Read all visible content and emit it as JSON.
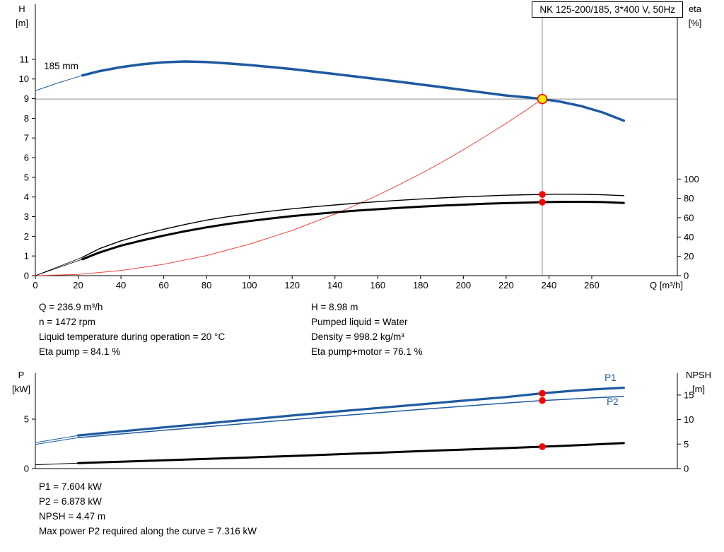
{
  "colors": {
    "blue": "#1e5aa0",
    "black": "#000000",
    "red": "#f0443c",
    "red_dot": "#ff0000",
    "yellow": "#ffe800",
    "gray": "#909090"
  },
  "chart_data": [
    {
      "id": "hq-eta",
      "type": "line",
      "title": "NK 125-200/185, 3*400 V, 50Hz",
      "x_axis": {
        "label": "Q [m³/h]",
        "min": 0,
        "max": 300,
        "ticks": [
          0,
          20,
          40,
          60,
          80,
          100,
          120,
          140,
          160,
          180,
          200,
          220,
          240,
          260
        ]
      },
      "y_left": {
        "label": [
          "H",
          "[m]"
        ],
        "min": 0,
        "max": 13.8,
        "ticks": [
          0,
          1,
          2,
          3,
          4,
          5,
          6,
          7,
          8,
          9,
          10,
          11
        ]
      },
      "y_right": {
        "label": [
          "eta",
          "[%]"
        ],
        "min": 0,
        "max": 281,
        "ticks": [
          0,
          20,
          40,
          60,
          80,
          100
        ]
      },
      "crosshair": {
        "x": 236.9,
        "y_left": 8.98
      },
      "series": [
        {
          "name": "head-curve-lead",
          "axis": "left",
          "color": "blue",
          "width": 1,
          "points": [
            [
              0,
              9.4
            ],
            [
              10,
              9.78
            ],
            [
              22,
              10.18
            ]
          ]
        },
        {
          "name": "head-curve-185mm",
          "axis": "left",
          "color": "blue",
          "width": 3.5,
          "points": [
            [
              22,
              10.18
            ],
            [
              30,
              10.4
            ],
            [
              40,
              10.6
            ],
            [
              50,
              10.75
            ],
            [
              60,
              10.85
            ],
            [
              70,
              10.89
            ],
            [
              80,
              10.86
            ],
            [
              90,
              10.79
            ],
            [
              100,
              10.71
            ],
            [
              110,
              10.61
            ],
            [
              120,
              10.5
            ],
            [
              130,
              10.38
            ],
            [
              140,
              10.25
            ],
            [
              150,
              10.12
            ],
            [
              160,
              9.99
            ],
            [
              170,
              9.86
            ],
            [
              180,
              9.72
            ],
            [
              190,
              9.58
            ],
            [
              200,
              9.44
            ],
            [
              210,
              9.3
            ],
            [
              220,
              9.16
            ],
            [
              230,
              9.06
            ],
            [
              236.9,
              8.98
            ],
            [
              245,
              8.85
            ],
            [
              255,
              8.62
            ],
            [
              265,
              8.3
            ],
            [
              275,
              7.88
            ]
          ]
        },
        {
          "name": "system-curve",
          "axis": "left",
          "color": "red",
          "width": 1,
          "points": [
            [
              0,
              0
            ],
            [
              20,
              0.06
            ],
            [
              40,
              0.26
            ],
            [
              60,
              0.58
            ],
            [
              80,
              1.02
            ],
            [
              100,
              1.6
            ],
            [
              120,
              2.3
            ],
            [
              140,
              3.13
            ],
            [
              150,
              3.6
            ],
            [
              160,
              4.09
            ],
            [
              170,
              4.62
            ],
            [
              180,
              5.18
            ],
            [
              190,
              5.77
            ],
            [
              200,
              6.4
            ],
            [
              210,
              7.06
            ],
            [
              220,
              7.74
            ],
            [
              230,
              8.46
            ],
            [
              236.9,
              8.98
            ]
          ]
        },
        {
          "name": "eta-pump-lead",
          "axis": "right",
          "color": "black",
          "width": 0.8,
          "points": [
            [
              0,
              0
            ],
            [
              22,
              19
            ]
          ]
        },
        {
          "name": "eta-pump-curve",
          "axis": "right",
          "color": "black",
          "width": 1.4,
          "points": [
            [
              22,
              19
            ],
            [
              30,
              28
            ],
            [
              40,
              36
            ],
            [
              50,
              42.5
            ],
            [
              60,
              48
            ],
            [
              70,
              53
            ],
            [
              80,
              57.5
            ],
            [
              90,
              61
            ],
            [
              100,
              64
            ],
            [
              110,
              66.8
            ],
            [
              120,
              69.2
            ],
            [
              130,
              71.3
            ],
            [
              140,
              73.2
            ],
            [
              150,
              75
            ],
            [
              160,
              76.6
            ],
            [
              170,
              78
            ],
            [
              180,
              79.3
            ],
            [
              190,
              80.5
            ],
            [
              200,
              81.6
            ],
            [
              210,
              82.5
            ],
            [
              220,
              83.3
            ],
            [
              230,
              83.8
            ],
            [
              236.9,
              84.1
            ],
            [
              245,
              84.3
            ],
            [
              255,
              84.2
            ],
            [
              265,
              83.7
            ],
            [
              275,
              82.8
            ]
          ]
        },
        {
          "name": "eta-pump-motor-lead",
          "axis": "right",
          "color": "black",
          "width": 0.8,
          "points": [
            [
              0,
              0
            ],
            [
              22,
              17
            ]
          ]
        },
        {
          "name": "eta-pump-motor-curve",
          "axis": "right",
          "color": "black",
          "width": 3,
          "points": [
            [
              22,
              17
            ],
            [
              30,
              24
            ],
            [
              40,
              31
            ],
            [
              50,
              36.5
            ],
            [
              60,
              41.5
            ],
            [
              70,
              46
            ],
            [
              80,
              50
            ],
            [
              90,
              53.5
            ],
            [
              100,
              56.5
            ],
            [
              110,
              59.2
            ],
            [
              120,
              61.6
            ],
            [
              130,
              63.7
            ],
            [
              140,
              65.6
            ],
            [
              150,
              67.3
            ],
            [
              160,
              68.8
            ],
            [
              170,
              70.2
            ],
            [
              180,
              71.4
            ],
            [
              190,
              72.5
            ],
            [
              200,
              73.5
            ],
            [
              210,
              74.4
            ],
            [
              220,
              75.1
            ],
            [
              230,
              75.7
            ],
            [
              236.9,
              76.1
            ],
            [
              245,
              76.4
            ],
            [
              255,
              76.5
            ],
            [
              265,
              76.2
            ],
            [
              275,
              75.3
            ]
          ]
        }
      ],
      "annotations": [
        {
          "text": "185 mm",
          "x": 4,
          "y": 10.5,
          "axis": "left",
          "color": "black"
        }
      ],
      "markers": [
        {
          "name": "duty-point",
          "x": 236.9,
          "y": 8.98,
          "axis": "left",
          "style": "duty"
        },
        {
          "name": "eta-pump-point",
          "x": 236.9,
          "y": 84.1,
          "axis": "right",
          "style": "dot"
        },
        {
          "name": "eta-pump-motor-point",
          "x": 236.9,
          "y": 76.1,
          "axis": "right",
          "style": "dot"
        }
      ]
    },
    {
      "id": "power-npsh",
      "type": "line",
      "x_axis": {
        "label": null,
        "min": 0,
        "max": 300,
        "ticks": []
      },
      "y_left": {
        "label": [
          "P",
          "[kW]"
        ],
        "min": 0,
        "max": 9.64,
        "ticks": [
          0,
          5
        ]
      },
      "y_right": {
        "label": [
          "NPSH",
          "[m]"
        ],
        "min": 0,
        "max": 19.45,
        "ticks": [
          0,
          5,
          10,
          15
        ]
      },
      "series": [
        {
          "name": "p1-lead",
          "axis": "left",
          "color": "blue",
          "width": 1,
          "points": [
            [
              0,
              2.62
            ],
            [
              20,
              3.35
            ]
          ]
        },
        {
          "name": "p1-curve",
          "axis": "left",
          "color": "blue",
          "width": 3.2,
          "points": [
            [
              20,
              3.35
            ],
            [
              40,
              3.76
            ],
            [
              60,
              4.16
            ],
            [
              80,
              4.56
            ],
            [
              100,
              4.96
            ],
            [
              120,
              5.36
            ],
            [
              140,
              5.75
            ],
            [
              160,
              6.12
            ],
            [
              180,
              6.49
            ],
            [
              200,
              6.86
            ],
            [
              220,
              7.23
            ],
            [
              236.9,
              7.604
            ],
            [
              250,
              7.85
            ],
            [
              260,
              8.0
            ],
            [
              275,
              8.17
            ]
          ]
        },
        {
          "name": "p2-lead",
          "axis": "left",
          "color": "blue",
          "width": 1,
          "points": [
            [
              0,
              2.45
            ],
            [
              20,
              3.13
            ]
          ]
        },
        {
          "name": "p2-curve",
          "axis": "left",
          "color": "blue",
          "width": 1.5,
          "points": [
            [
              20,
              3.13
            ],
            [
              40,
              3.5
            ],
            [
              60,
              3.87
            ],
            [
              80,
              4.23
            ],
            [
              100,
              4.59
            ],
            [
              120,
              4.95
            ],
            [
              140,
              5.3
            ],
            [
              160,
              5.64
            ],
            [
              180,
              5.98
            ],
            [
              200,
              6.3
            ],
            [
              220,
              6.62
            ],
            [
              236.9,
              6.878
            ],
            [
              250,
              7.03
            ],
            [
              260,
              7.14
            ],
            [
              275,
              7.29
            ]
          ]
        },
        {
          "name": "npsh-lead",
          "axis": "right",
          "color": "black",
          "width": 1,
          "points": [
            [
              0,
              0.78
            ],
            [
              20,
              1.12
            ]
          ]
        },
        {
          "name": "npsh-curve",
          "axis": "right",
          "color": "black",
          "width": 3,
          "points": [
            [
              20,
              1.12
            ],
            [
              40,
              1.4
            ],
            [
              60,
              1.68
            ],
            [
              80,
              1.97
            ],
            [
              100,
              2.27
            ],
            [
              120,
              2.58
            ],
            [
              140,
              2.9
            ],
            [
              160,
              3.23
            ],
            [
              180,
              3.56
            ],
            [
              200,
              3.87
            ],
            [
              220,
              4.18
            ],
            [
              236.9,
              4.47
            ],
            [
              250,
              4.7
            ],
            [
              260,
              4.9
            ],
            [
              275,
              5.2
            ]
          ]
        }
      ],
      "annotations": [
        {
          "text": "P1",
          "x": 266,
          "y": 8.85,
          "axis": "left",
          "color": "blue"
        },
        {
          "text": "P2",
          "x": 267,
          "y": 6.42,
          "axis": "left",
          "color": "blue"
        }
      ],
      "markers": [
        {
          "name": "p1-point",
          "x": 236.9,
          "y": 7.604,
          "axis": "left",
          "style": "dot"
        },
        {
          "name": "p2-point",
          "x": 236.9,
          "y": 6.878,
          "axis": "left",
          "style": "dot"
        },
        {
          "name": "npsh-point",
          "x": 236.9,
          "y": 4.47,
          "axis": "right",
          "style": "dot"
        }
      ]
    }
  ],
  "details": {
    "operating_point": {
      "left": [
        "Q = 236.9 m³/h",
        "n = 1472 rpm",
        "Liquid temperature during operation = 20 °C",
        "Eta pump = 84.1 %"
      ],
      "right": [
        "H = 8.98 m",
        "Pumped liquid = Water",
        "Density = 998.2 kg/m³",
        "Eta pump+motor = 76.1 %"
      ]
    },
    "power": [
      "P1 = 7.604 kW",
      "P2 = 6.878 kW",
      "NPSH = 4.47 m",
      "Max power P2 required along the curve = 7.316 kW"
    ]
  }
}
